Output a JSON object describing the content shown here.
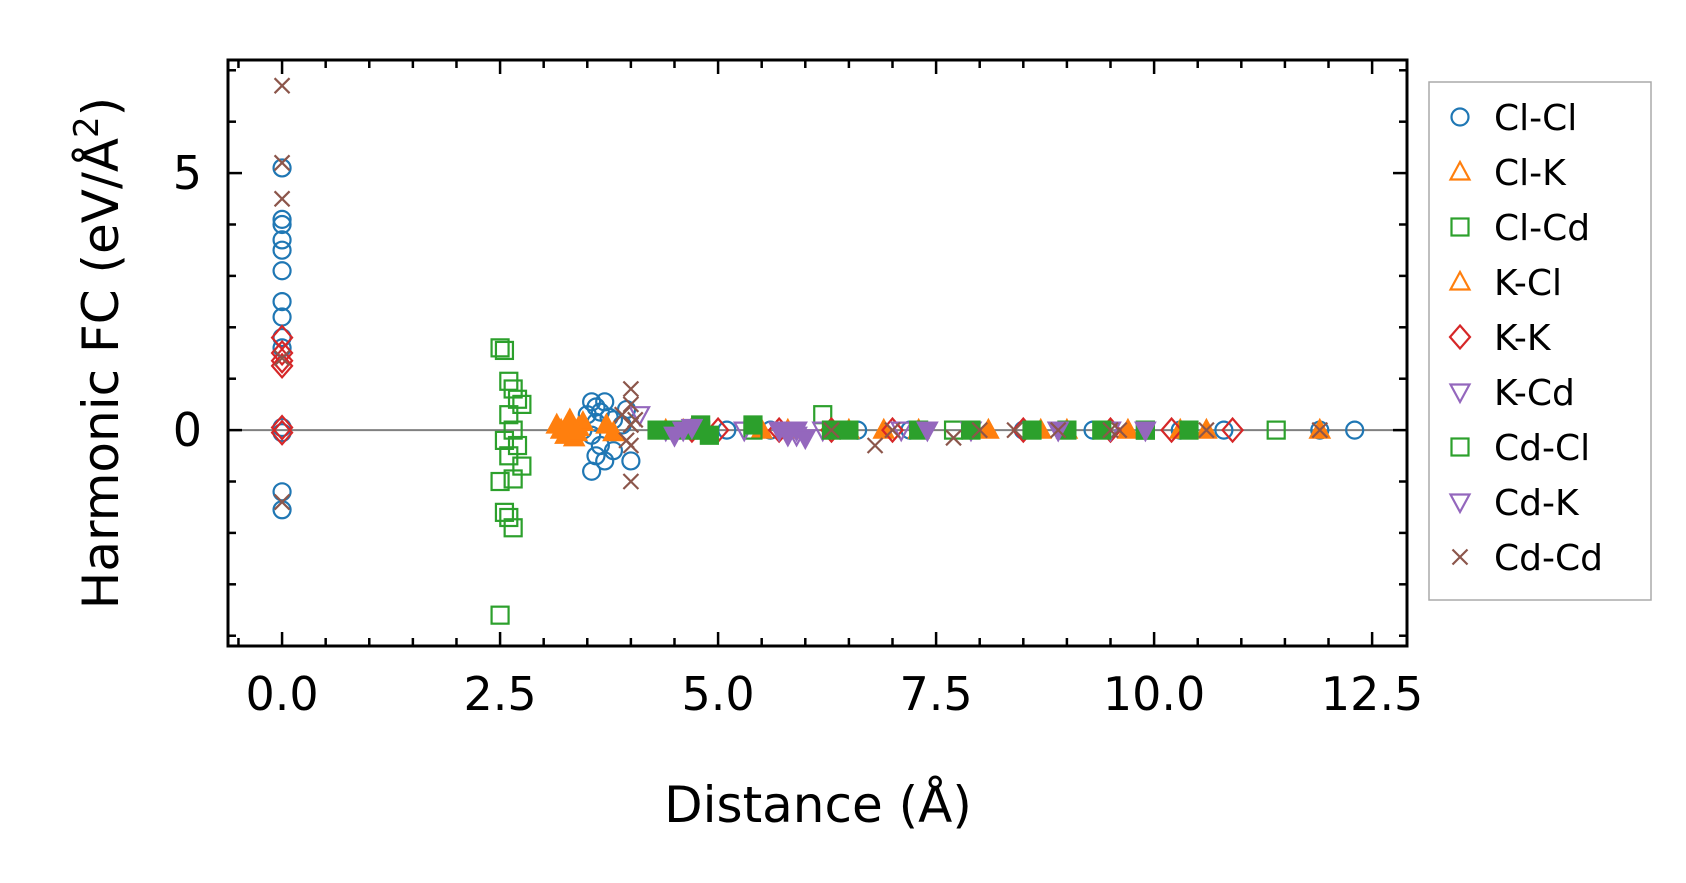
{
  "chart_data": {
    "type": "scatter",
    "xlabel": "Distance (Å)",
    "ylabel_main": "Harmonic FC (eV/Å",
    "ylabel_sup": "2",
    "ylabel_close": ")",
    "xlim": [
      -0.62,
      12.9
    ],
    "ylim": [
      -4.2,
      7.2
    ],
    "xticks": [
      0.0,
      2.5,
      5.0,
      7.5,
      10.0,
      12.5
    ],
    "xtick_labels": [
      "0.0",
      "2.5",
      "5.0",
      "7.5",
      "10.0",
      "12.5"
    ],
    "yticks": [
      0,
      5
    ],
    "ytick_labels": [
      "0",
      "5"
    ],
    "x_minor_step": 0.5,
    "y_minor_step": 1,
    "zero_line": true,
    "legend_position": "outside-right",
    "series": [
      {
        "name": "Cl-Cl",
        "marker": "circle",
        "color": "#1f77b4",
        "points": [
          [
            0,
            5.1
          ],
          [
            0,
            4.1
          ],
          [
            0,
            4.0
          ],
          [
            0,
            3.7
          ],
          [
            0,
            3.5
          ],
          [
            0,
            3.1
          ],
          [
            0,
            2.5
          ],
          [
            0,
            2.2
          ],
          [
            0,
            1.8
          ],
          [
            0,
            1.6
          ],
          [
            0,
            0.05
          ],
          [
            0,
            -0.05
          ],
          [
            0,
            -1.2
          ],
          [
            0,
            -1.55
          ],
          [
            3.55,
            0.55
          ],
          [
            3.6,
            0.45
          ],
          [
            3.65,
            0.35
          ],
          [
            3.7,
            0.55
          ],
          [
            3.75,
            0.25
          ],
          [
            3.6,
            0.15
          ],
          [
            3.5,
            0.3
          ],
          [
            3.55,
            -0.1
          ],
          [
            3.65,
            -0.3
          ],
          [
            3.6,
            -0.5
          ],
          [
            3.55,
            -0.8
          ],
          [
            3.7,
            -0.6
          ],
          [
            3.8,
            -0.4
          ],
          [
            3.9,
            0.1
          ],
          [
            3.95,
            0.4
          ],
          [
            4.0,
            -0.6
          ],
          [
            3.8,
            0.2
          ],
          [
            3.45,
            0.0
          ],
          [
            4.5,
            0
          ],
          [
            5.1,
            0
          ],
          [
            5.6,
            0
          ],
          [
            6.3,
            0
          ],
          [
            6.6,
            0
          ],
          [
            7.2,
            0
          ],
          [
            7.9,
            0
          ],
          [
            8.5,
            0
          ],
          [
            9.3,
            0
          ],
          [
            10.3,
            0
          ],
          [
            10.8,
            0
          ],
          [
            11.9,
            0
          ],
          [
            12.3,
            0
          ]
        ]
      },
      {
        "name": "Cl-K",
        "marker": "triangle-up",
        "color": "#ff7f0e",
        "points": [
          [
            3.15,
            0.1
          ],
          [
            3.2,
            0.0
          ],
          [
            3.25,
            -0.1
          ],
          [
            3.3,
            0.2
          ],
          [
            3.35,
            -0.15
          ],
          [
            3.4,
            0.05
          ],
          [
            3.45,
            0.15
          ],
          [
            3.8,
            -0.05
          ],
          [
            4.4,
            0
          ],
          [
            5.5,
            0
          ],
          [
            6.5,
            0
          ],
          [
            7.3,
            0
          ],
          [
            8.1,
            0
          ],
          [
            9.0,
            0
          ],
          [
            9.7,
            0
          ],
          [
            10.3,
            0
          ],
          [
            11.9,
            0
          ]
        ]
      },
      {
        "name": "Cl-Cd",
        "marker": "square",
        "color": "#2ca02c",
        "points": [
          [
            2.5,
            1.6
          ],
          [
            2.55,
            1.55
          ],
          [
            2.6,
            0.95
          ],
          [
            2.65,
            0.8
          ],
          [
            2.7,
            0.6
          ],
          [
            2.75,
            0.5
          ],
          [
            2.6,
            0.3
          ],
          [
            2.65,
            0.0
          ],
          [
            2.55,
            -0.2
          ],
          [
            2.7,
            -0.3
          ],
          [
            2.6,
            -0.5
          ],
          [
            2.75,
            -0.7
          ],
          [
            2.65,
            -0.95
          ],
          [
            2.5,
            -1.0
          ],
          [
            2.55,
            -1.6
          ],
          [
            2.6,
            -1.7
          ],
          [
            2.65,
            -1.9
          ],
          [
            2.5,
            -3.6
          ],
          [
            4.8,
            0
          ],
          [
            5.4,
            0
          ],
          [
            6.2,
            0.3
          ],
          [
            7.7,
            0
          ],
          [
            9.9,
            0
          ],
          [
            11.4,
            0
          ]
        ]
      },
      {
        "name": "K-Cl",
        "marker": "triangle-up",
        "color": "#ff7f0e",
        "points": [
          [
            3.28,
            0.05
          ],
          [
            3.38,
            -0.05
          ],
          [
            3.72,
            0.1
          ],
          [
            4.6,
            0
          ],
          [
            5.8,
            0
          ],
          [
            6.9,
            0
          ],
          [
            8.7,
            0
          ],
          [
            10.6,
            0
          ]
        ]
      },
      {
        "name": "K-K",
        "marker": "diamond",
        "color": "#d62728",
        "points": [
          [
            0,
            1.8
          ],
          [
            0,
            1.5
          ],
          [
            0,
            1.35
          ],
          [
            0,
            1.25
          ],
          [
            0,
            0.05
          ],
          [
            0,
            -0.05
          ],
          [
            4.7,
            0
          ],
          [
            5.0,
            0
          ],
          [
            5.7,
            0
          ],
          [
            6.3,
            0
          ],
          [
            7.0,
            0
          ],
          [
            8.5,
            0
          ],
          [
            9.5,
            0
          ],
          [
            10.2,
            0
          ],
          [
            10.9,
            0
          ]
        ]
      },
      {
        "name": "K-Cd",
        "marker": "triangle-down",
        "color": "#9467bd",
        "points": [
          [
            4.1,
            0.3
          ],
          [
            4.4,
            0
          ],
          [
            4.5,
            -0.1
          ],
          [
            5.3,
            0
          ],
          [
            5.8,
            0
          ],
          [
            5.9,
            -0.1
          ],
          [
            6.2,
            0
          ],
          [
            7.1,
            0
          ],
          [
            7.9,
            0
          ],
          [
            8.9,
            0
          ],
          [
            9.5,
            0
          ]
        ]
      },
      {
        "name": "Cd-Cl",
        "marker": "square-filled",
        "color": "#2ca02c",
        "points": [
          [
            4.3,
            0
          ],
          [
            4.5,
            0
          ],
          [
            4.7,
            0
          ],
          [
            4.8,
            0.1
          ],
          [
            4.9,
            -0.1
          ],
          [
            5.4,
            0.1
          ],
          [
            6.3,
            0
          ],
          [
            6.5,
            0
          ],
          [
            7.3,
            0
          ],
          [
            7.9,
            0
          ],
          [
            8.6,
            0
          ],
          [
            9.0,
            0
          ],
          [
            9.4,
            0
          ],
          [
            9.9,
            0
          ],
          [
            10.4,
            0
          ]
        ]
      },
      {
        "name": "Cd-K",
        "marker": "triangle-down-filled",
        "color": "#9467bd",
        "points": [
          [
            4.5,
            -0.1
          ],
          [
            4.6,
            0
          ],
          [
            4.7,
            0.05
          ],
          [
            5.7,
            0
          ],
          [
            5.8,
            -0.1
          ],
          [
            5.9,
            0
          ],
          [
            6.0,
            -0.15
          ],
          [
            7.4,
            0
          ],
          [
            8.9,
            0
          ],
          [
            9.9,
            0
          ]
        ]
      },
      {
        "name": "Cd-Cd",
        "marker": "x",
        "color": "#8c564b",
        "points": [
          [
            0,
            6.7
          ],
          [
            0,
            5.2
          ],
          [
            0,
            4.5
          ],
          [
            0,
            1.4
          ],
          [
            0,
            -1.4
          ],
          [
            3.9,
            0.3
          ],
          [
            3.95,
            -0.2
          ],
          [
            4.0,
            0.8
          ],
          [
            4.0,
            0.5
          ],
          [
            4.0,
            0.1
          ],
          [
            4.0,
            -0.3
          ],
          [
            4.0,
            -1.0
          ],
          [
            4.05,
            0.2
          ],
          [
            6.3,
            0
          ],
          [
            6.8,
            -0.3
          ],
          [
            7.0,
            0
          ],
          [
            7.7,
            -0.15
          ],
          [
            8.0,
            0
          ],
          [
            8.4,
            0
          ],
          [
            8.9,
            0
          ],
          [
            9.5,
            0
          ],
          [
            9.6,
            0
          ],
          [
            10.6,
            0
          ],
          [
            11.9,
            0
          ]
        ]
      }
    ]
  }
}
